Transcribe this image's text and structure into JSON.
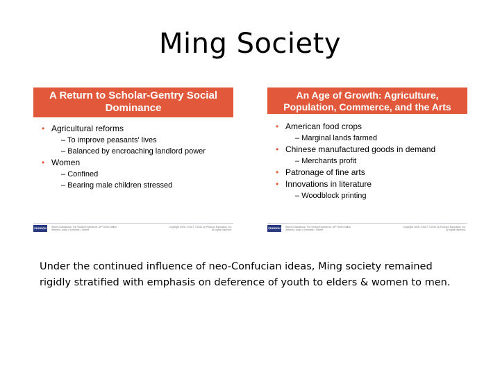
{
  "slide": {
    "title": "Ming Society",
    "caption_line1": "Under the continued influence of neo-Confucian ideas, Ming society remained",
    "caption_line2": "rigidly stratified with emphasis on deference of youth to elders & women to men."
  },
  "left_panel": {
    "title_line1": "A Return to Scholar-Gentry Social",
    "title_line2": "Dominance",
    "items": [
      {
        "text": "Agricultural reforms",
        "level": 1
      },
      {
        "text": "To improve peasants' lives",
        "level": 2
      },
      {
        "text": "Balanced by encroaching landlord power",
        "level": 2
      },
      {
        "text": "Women",
        "level": 1
      },
      {
        "text": "Confined",
        "level": 2
      },
      {
        "text": "Bearing male children stressed",
        "level": 2
      }
    ],
    "footer_text_line1": "World Civilizations: The Global Experience, AP* Sixth Edition",
    "footer_text_line2": "Stearns • Adas • Schwartz • Gilbert",
    "footer_copy_line1": "Copyright 2006, ©2007, ©2011 by Pearson Education, Inc.",
    "footer_copy_line2": "All rights reserved.",
    "logo_text": "PEARSON"
  },
  "right_panel": {
    "title_line1": "An Age of Growth: Agriculture,",
    "title_line2": "Population, Commerce, and the Arts",
    "items": [
      {
        "text": "American food crops",
        "level": 1
      },
      {
        "text": "Marginal lands farmed",
        "level": 2
      },
      {
        "text": "Chinese manufactured goods in demand",
        "level": 1
      },
      {
        "text": "Merchants profit",
        "level": 2
      },
      {
        "text": "Patronage of fine arts",
        "level": 1
      },
      {
        "text": "Innovations in literature",
        "level": 1
      },
      {
        "text": "Woodblock printing",
        "level": 2
      }
    ],
    "footer_text_line1": "World Civilizations: The Global Experience, AP* Sixth Edition",
    "footer_text_line2": "Stearns • Adas • Schwartz • Gilbert",
    "footer_copy_line1": "Copyright 2006, ©2007, ©2011 by Pearson Education, Inc.",
    "footer_copy_line2": "All rights reserved.",
    "logo_text": "PEARSON"
  },
  "colors": {
    "header_bg": "#e2583a",
    "bullet": "#e2583a"
  }
}
